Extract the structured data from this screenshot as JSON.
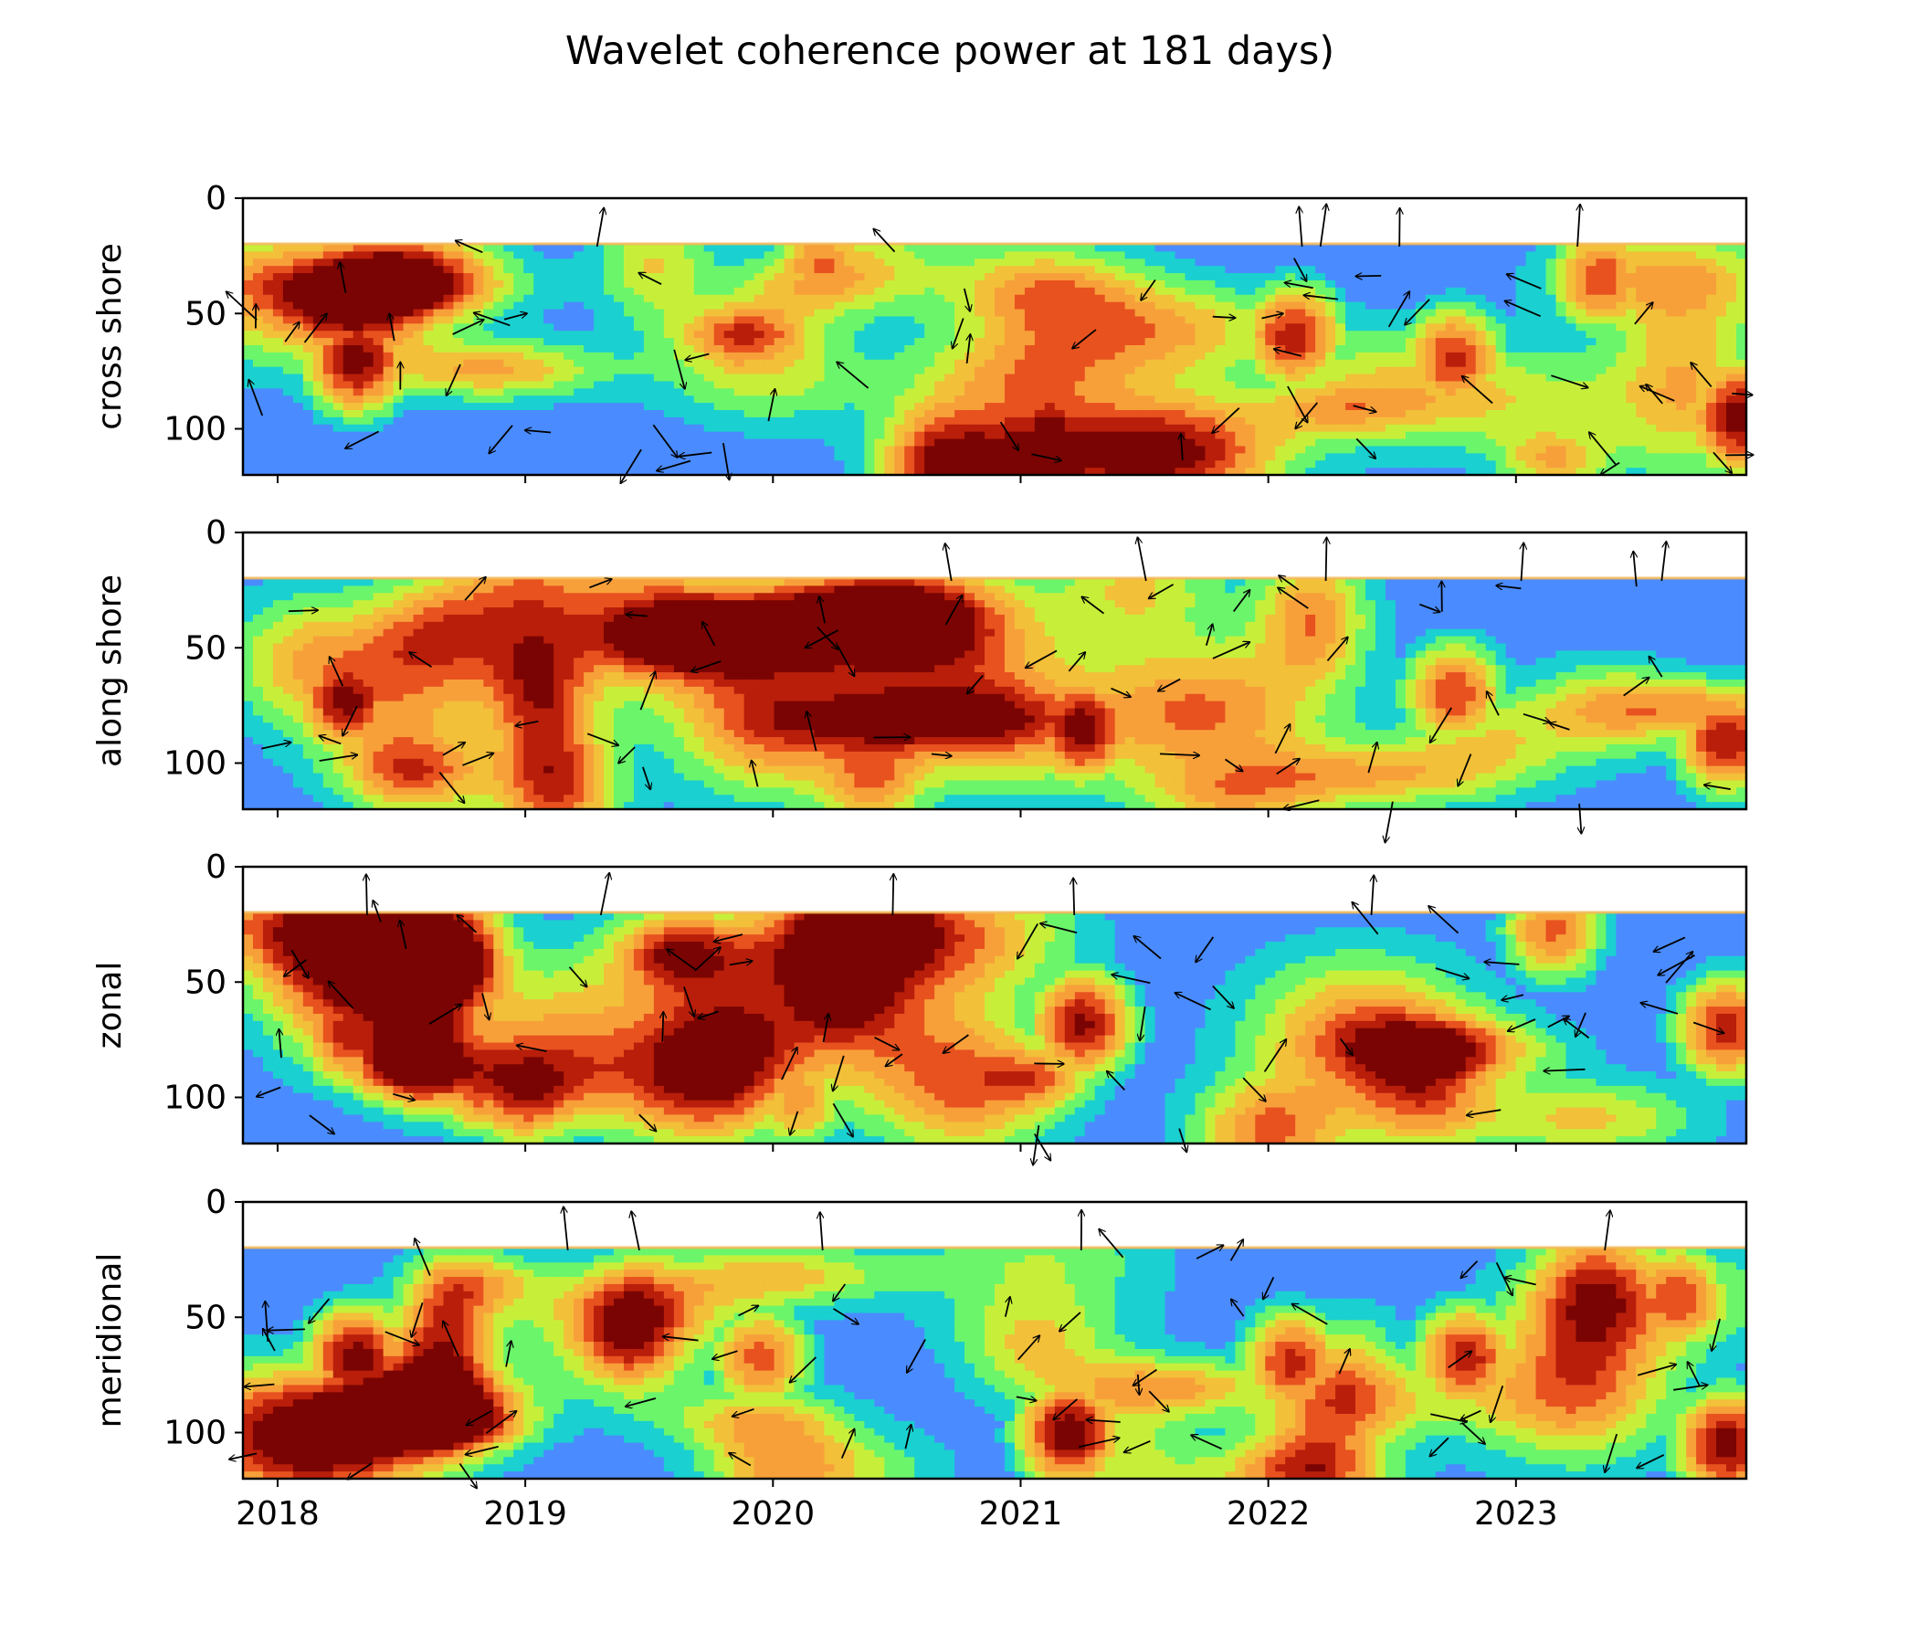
{
  "figure": {
    "title": "Wavelet coherence power at 181 days)"
  },
  "chart_data": {
    "type": "heatmap",
    "title": "Wavelet coherence power at 181 days)",
    "xlim": [
      2017.86,
      2023.93
    ],
    "ylim": [
      120,
      0
    ],
    "x_ticks": [
      "2018",
      "2019",
      "2020",
      "2021",
      "2022",
      "2023"
    ],
    "y_ticks": [
      "0",
      "50",
      "100"
    ],
    "masked_band_depth": 20,
    "colormap": [
      "#3f3fa0",
      "#4a8cff",
      "#1ad0d0",
      "#6bf56b",
      "#c7ef3a",
      "#f2c039",
      "#f7a03a",
      "#e8521f",
      "#b81e0a",
      "#7a0403"
    ],
    "panels": [
      {
        "ylabel": "cross shore",
        "hotspots": [
          {
            "x": 2018.32,
            "y": 70,
            "power": 0.97
          },
          {
            "x": 2021.12,
            "y": 102,
            "power": 0.99
          },
          {
            "x": 2022.1,
            "y": 60,
            "power": 0.85
          },
          {
            "x": 2022.75,
            "y": 70,
            "power": 0.82
          },
          {
            "x": 2023.35,
            "y": 35,
            "power": 0.78
          },
          {
            "x": 2023.9,
            "y": 95,
            "power": 0.97
          },
          {
            "x": 2020.2,
            "y": 30,
            "power": 0.72
          },
          {
            "x": 2019.87,
            "y": 63,
            "power": 0.68
          }
        ]
      },
      {
        "ylabel": "along shore",
        "hotspots": [
          {
            "x": 2018.28,
            "y": 72,
            "power": 0.95
          },
          {
            "x": 2021.25,
            "y": 85,
            "power": 0.98
          },
          {
            "x": 2020.2,
            "y": 48,
            "power": 0.82
          },
          {
            "x": 2022.75,
            "y": 70,
            "power": 0.78
          },
          {
            "x": 2023.85,
            "y": 90,
            "power": 0.88
          },
          {
            "x": 2020.85,
            "y": 80,
            "power": 0.7
          }
        ]
      },
      {
        "ylabel": "zonal",
        "hotspots": [
          {
            "x": 2018.3,
            "y": 72,
            "power": 0.88
          },
          {
            "x": 2018.82,
            "y": 92,
            "power": 0.84
          },
          {
            "x": 2021.25,
            "y": 68,
            "power": 0.92
          },
          {
            "x": 2020.2,
            "y": 42,
            "power": 0.8
          },
          {
            "x": 2023.85,
            "y": 70,
            "power": 0.84
          },
          {
            "x": 2023.15,
            "y": 27,
            "power": 0.72
          },
          {
            "x": 2020.1,
            "y": 100,
            "power": 0.66
          }
        ]
      },
      {
        "ylabel": "meridional",
        "hotspots": [
          {
            "x": 2018.32,
            "y": 68,
            "power": 0.96
          },
          {
            "x": 2021.2,
            "y": 100,
            "power": 0.99
          },
          {
            "x": 2022.1,
            "y": 70,
            "power": 0.84
          },
          {
            "x": 2022.8,
            "y": 68,
            "power": 0.86
          },
          {
            "x": 2023.85,
            "y": 105,
            "power": 0.95
          },
          {
            "x": 2023.65,
            "y": 42,
            "power": 0.8
          },
          {
            "x": 2019.95,
            "y": 68,
            "power": 0.74
          }
        ]
      }
    ]
  }
}
